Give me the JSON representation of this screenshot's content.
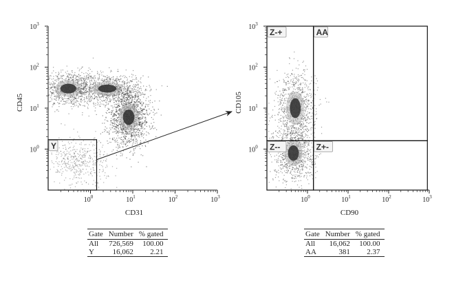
{
  "chart_data": [
    {
      "type": "scatter",
      "xlabel": "CD31",
      "ylabel": "CD45",
      "x_scale": "log",
      "y_scale": "log",
      "xlim": [
        0.1,
        1000
      ],
      "ylim": [
        0.1,
        1000
      ],
      "x_ticks": [
        {
          "base": "10",
          "exp": "0",
          "value": 1
        },
        {
          "base": "10",
          "exp": "1",
          "value": 10
        },
        {
          "base": "10",
          "exp": "2",
          "value": 100
        },
        {
          "base": "10",
          "exp": "3",
          "value": 1000
        }
      ],
      "y_ticks": [
        {
          "base": "10",
          "exp": "0",
          "value": 1
        },
        {
          "base": "10",
          "exp": "1",
          "value": 10
        },
        {
          "base": "10",
          "exp": "2",
          "value": 100
        },
        {
          "base": "10",
          "exp": "3",
          "value": 1000
        }
      ],
      "clusters": [
        {
          "x_center": 0.3,
          "y_center": 30,
          "x_spread": 0.35,
          "y_spread": 0.22,
          "density": "high"
        },
        {
          "x_center": 2.5,
          "y_center": 30,
          "x_spread": 0.4,
          "y_spread": 0.18,
          "density": "high"
        },
        {
          "x_center": 8,
          "y_center": 6,
          "x_spread": 0.25,
          "y_spread": 0.35,
          "density": "very high"
        },
        {
          "x_center": 0.5,
          "y_center": 0.5,
          "x_spread": 0.35,
          "y_spread": 0.3,
          "density": "low"
        }
      ],
      "gates": [
        {
          "label": "Y",
          "x_range": [
            0.1,
            1.4
          ],
          "y_range": [
            0.1,
            1.7
          ]
        }
      ],
      "annotations": [
        "arrow from gate Y to right plot"
      ]
    },
    {
      "type": "scatter",
      "xlabel": "CD90",
      "ylabel": "CD105",
      "x_scale": "log",
      "y_scale": "log",
      "xlim": [
        0.1,
        1000
      ],
      "ylim": [
        0.1,
        1000
      ],
      "x_ticks": [
        {
          "base": "10",
          "exp": "0",
          "value": 1
        },
        {
          "base": "10",
          "exp": "1",
          "value": 10
        },
        {
          "base": "10",
          "exp": "2",
          "value": 100
        },
        {
          "base": "10",
          "exp": "3",
          "value": 1000
        }
      ],
      "y_ticks": [
        {
          "base": "10",
          "exp": "0",
          "value": 1
        },
        {
          "base": "10",
          "exp": "1",
          "value": 10
        },
        {
          "base": "10",
          "exp": "2",
          "value": 100
        },
        {
          "base": "10",
          "exp": "3",
          "value": 1000
        }
      ],
      "clusters": [
        {
          "x_center": 0.5,
          "y_center": 10,
          "x_spread": 0.25,
          "y_spread": 0.45,
          "density": "high"
        },
        {
          "x_center": 0.45,
          "y_center": 0.8,
          "x_spread": 0.25,
          "y_spread": 0.35,
          "density": "high"
        }
      ],
      "gates": [
        {
          "label": "Z-+",
          "x_range": [
            0.1,
            1.4
          ],
          "y_range": [
            1.6,
            1000
          ]
        },
        {
          "label": "AA",
          "x_range": [
            1.4,
            900
          ],
          "y_range": [
            1.6,
            1000
          ]
        },
        {
          "label": "Z--",
          "x_range": [
            0.1,
            1.4
          ],
          "y_range": [
            0.1,
            1.6
          ]
        },
        {
          "label": "Z+-",
          "x_range": [
            1.4,
            900
          ],
          "y_range": [
            0.1,
            1.6
          ]
        }
      ]
    }
  ],
  "tables": {
    "left": {
      "headers": [
        "Gate",
        "Number",
        "% gated"
      ],
      "rows": [
        [
          "All",
          "726,569",
          "100.00"
        ],
        [
          "Y",
          "16,062",
          "2.21"
        ]
      ]
    },
    "right": {
      "headers": [
        "Gate",
        "Number",
        "% gated"
      ],
      "rows": [
        [
          "All",
          "16,062",
          "100.00"
        ],
        [
          "AA",
          "381",
          "2.37"
        ]
      ]
    }
  }
}
